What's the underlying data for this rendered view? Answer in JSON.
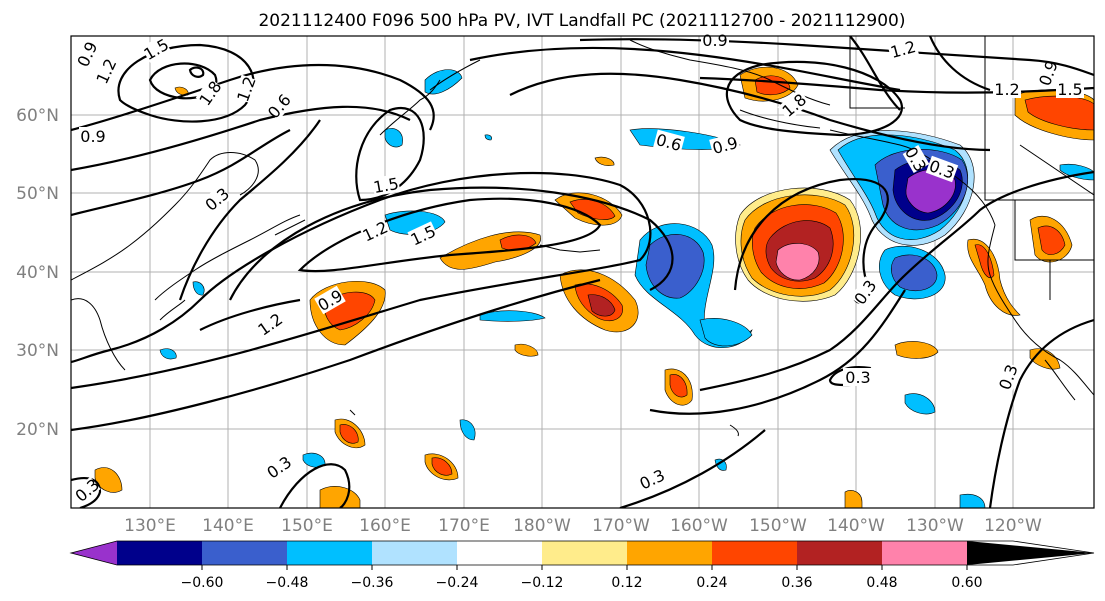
{
  "title": "2021112400 F096 500 hPa PV, IVT Landfall PC (2021112700 - 2021112900)",
  "lat_labels": [
    "60°N",
    "50°N",
    "40°N",
    "30°N",
    "20°N"
  ],
  "lon_labels": [
    "130°E",
    "140°E",
    "150°E",
    "160°E",
    "170°E",
    "180°W",
    "170°W",
    "160°W",
    "150°W",
    "140°W",
    "130°W",
    "120°W"
  ],
  "colorbar": {
    "colors": [
      "#9932cc",
      "#00008b",
      "#3a5fcd",
      "#00bfff",
      "#b0e2ff",
      "#ffffff",
      "#ffec8b",
      "#ffa500",
      "#ff4500",
      "#b22222",
      "#ff82ab"
    ],
    "tick_labels": [
      "−0.60",
      "−0.48",
      "−0.36",
      "−0.24",
      "−0.12",
      "0.12",
      "0.24",
      "0.36",
      "0.48",
      "0.60"
    ]
  },
  "contour_labels": [
    "0.9",
    "1.5",
    "1.2",
    "1.8",
    "1.2",
    "0.6",
    "0.9",
    "0.3",
    "1.5",
    "1.2",
    "1.5",
    "0.9",
    "1.2",
    "0.9",
    "0.6",
    "0.9",
    "1.2",
    "0.9",
    "1.8",
    "1.2",
    "1.5",
    "0.3",
    "0.3",
    "0.3",
    "0.3",
    "0.3",
    "0.3",
    "0.3",
    "0.3"
  ]
}
